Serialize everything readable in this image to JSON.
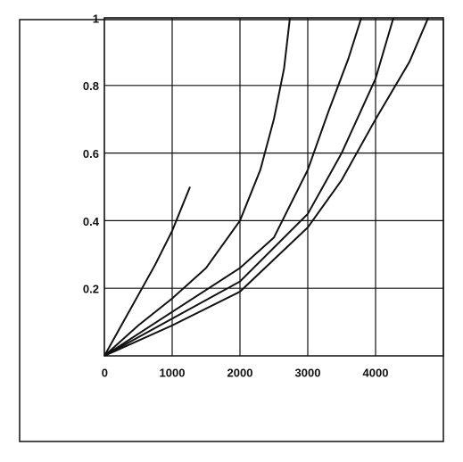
{
  "chart_data": {
    "type": "line",
    "series": [
      {
        "color": "#111111",
        "x": [
          0,
          250,
          500,
          750,
          1000,
          1263
        ],
        "values": [
          0,
          0.09,
          0.18,
          0.27,
          0.37,
          0.5
        ]
      },
      {
        "color": "#111111",
        "x": [
          0,
          500,
          1000,
          1500,
          2000,
          2300,
          2500,
          2650,
          2737
        ],
        "values": [
          0,
          0.09,
          0.17,
          0.26,
          0.4,
          0.55,
          0.7,
          0.85,
          1
        ]
      },
      {
        "color": "#111111",
        "x": [
          0,
          1000,
          2000,
          2500,
          3000,
          3300,
          3600,
          3789
        ],
        "values": [
          0,
          0.13,
          0.26,
          0.35,
          0.55,
          0.72,
          0.88,
          1
        ]
      },
      {
        "color": "#111111",
        "x": [
          0,
          1000,
          2000,
          3000,
          3500,
          4000,
          4263
        ],
        "values": [
          0,
          0.11,
          0.22,
          0.42,
          0.6,
          0.82,
          1
        ]
      },
      {
        "color": "#111111",
        "x": [
          0,
          1000,
          2000,
          3000,
          3500,
          4000,
          4500,
          4776
        ],
        "values": [
          0,
          0.09,
          0.19,
          0.38,
          0.52,
          0.7,
          0.87,
          1
        ]
      }
    ],
    "xlim": [
      0,
      5000
    ],
    "xticks": [
      0,
      1000,
      2000,
      3000,
      4000
    ],
    "ylim": [
      0,
      1
    ],
    "yticks": [
      0.2,
      0.4,
      0.6,
      0.8,
      1
    ],
    "grid": true
  }
}
